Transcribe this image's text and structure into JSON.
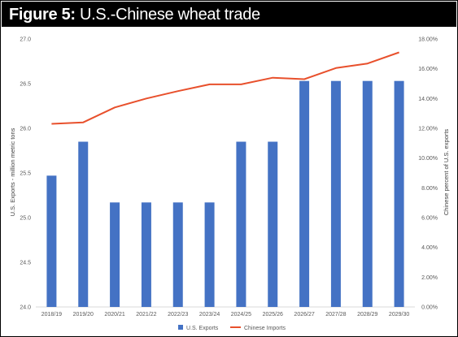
{
  "figure": {
    "title_prefix": "Figure 5:",
    "title_text": "U.S.-Chinese wheat trade"
  },
  "chart_data": {
    "type": "bar",
    "categories": [
      "2018/19",
      "2019/20",
      "2020/21",
      "2021/22",
      "2022/23",
      "2023/24",
      "2024/25",
      "2025/26",
      "2026/27",
      "2027/28",
      "2028/29",
      "2029/30"
    ],
    "series": [
      {
        "name": "U.S. Exports",
        "type": "bar",
        "axis": "left",
        "color": "#4472C4",
        "values": [
          25.47,
          25.85,
          25.17,
          25.17,
          25.17,
          25.17,
          25.85,
          25.85,
          26.53,
          26.53,
          26.53,
          26.53
        ]
      },
      {
        "name": "Chinese Imports",
        "type": "line",
        "axis": "right",
        "color": "#E8502C",
        "values": [
          12.3,
          12.4,
          13.4,
          14.0,
          14.5,
          14.95,
          14.95,
          15.4,
          15.3,
          16.05,
          16.35,
          17.1
        ]
      }
    ],
    "ylabel": "U.S. Exports - million metric tons",
    "ylim": [
      24.0,
      27.0
    ],
    "yticks": [
      "24.0",
      "24.5",
      "25.0",
      "25.5",
      "26.0",
      "26.5",
      "27.0"
    ],
    "y2label": "Chinese percent of U.S. exports",
    "y2lim": [
      0,
      18
    ],
    "y2ticks": [
      "0.00%",
      "2.00%",
      "4.00%",
      "6.00%",
      "8.00%",
      "10.00%",
      "12.00%",
      "14.00%",
      "16.00%",
      "18.00%"
    ],
    "grid": false,
    "legend_position": "bottom"
  }
}
